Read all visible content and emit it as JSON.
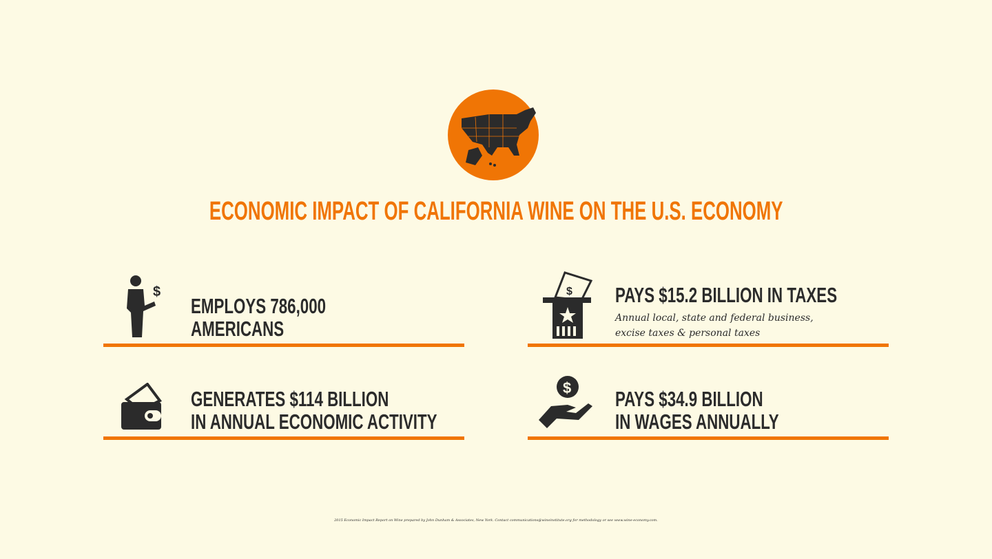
{
  "title": "ECONOMIC IMPACT OF CALIFORNIA WINE ON THE U.S. ECONOMY",
  "colors": {
    "accent": "#f07505",
    "text": "#2b2b2b",
    "background": "#fdfae4"
  },
  "stats": [
    {
      "icon": "businessman-dollar-icon",
      "line1": "EMPLOYS 786,000",
      "line2": "AMERICANS"
    },
    {
      "icon": "tax-box-icon",
      "line1": "PAYS $15.2 BILLION IN TAXES",
      "sub1": "Annual local, state and federal business,",
      "sub2": "excise taxes & personal taxes"
    },
    {
      "icon": "wallet-icon",
      "line1": "GENERATES $114 BILLION",
      "line2": "IN ANNUAL ECONOMIC ACTIVITY"
    },
    {
      "icon": "hand-coin-icon",
      "line1": "PAYS $34.9 BILLION",
      "line2": "IN WAGES ANNUALLY"
    }
  ],
  "footer": "2015 Economic Impact Report on Wine prepared by John Dunham & Associates, New York.  Contact communications@wineinstitute.org for methodology or see www.wine-economy.com."
}
